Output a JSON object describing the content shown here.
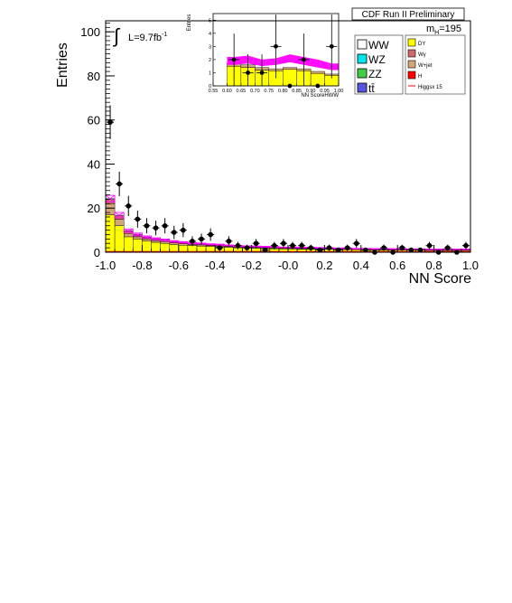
{
  "header": {
    "title": "CDF Run II Preliminary"
  },
  "chart_data": {
    "type": "histogram",
    "xlabel": "NN Score",
    "ylabel": "Entries",
    "xlim": [
      -1.0,
      1.0
    ],
    "ylim": [
      0,
      105
    ],
    "x_ticks": [
      "-1.0",
      "-0.8",
      "-0.6",
      "-0.4",
      "-0.2",
      "-0.0",
      "0.2",
      "0.4",
      "0.6",
      "0.8",
      "1.0"
    ],
    "y_ticks": [
      "0",
      "20",
      "40",
      "60",
      "80",
      "100"
    ],
    "x_tick_values": [
      -1.0,
      -0.8,
      -0.6,
      -0.4,
      -0.2,
      0.0,
      0.2,
      0.4,
      0.6,
      0.8,
      1.0
    ],
    "y_tick_values": [
      0,
      20,
      40,
      60,
      80,
      100
    ],
    "luminosity": {
      "prefix": "L=9.7fb",
      "exponent": "-1"
    },
    "mass": {
      "prefix": "m",
      "subscript": "H",
      "suffix": "=195"
    },
    "bin_edges": [
      -1.0,
      -0.95,
      -0.9,
      -0.85,
      -0.8,
      -0.75,
      -0.7,
      -0.65,
      -0.6,
      -0.55,
      -0.5,
      -0.45,
      -0.4,
      -0.35,
      -0.3,
      -0.25,
      -0.2,
      -0.15,
      -0.1,
      -0.05,
      0.0,
      0.05,
      0.1,
      0.15,
      0.2,
      0.25,
      0.3,
      0.35,
      0.4,
      0.45,
      0.5,
      0.55,
      0.6,
      0.65,
      0.7,
      0.75,
      0.8,
      0.85,
      0.9,
      0.95,
      1.0
    ],
    "stack": [
      {
        "name": "DY",
        "color": "#ffff00",
        "values": [
          17,
          12,
          7,
          6,
          5,
          4.5,
          4,
          3.5,
          3.2,
          3,
          2.8,
          2.6,
          2.4,
          2.2,
          2,
          1.9,
          1.8,
          1.7,
          1.6,
          1.5,
          1.5,
          1.4,
          1.4,
          1.3,
          1.3,
          1.2,
          1.2,
          1.1,
          1.1,
          1,
          1,
          1,
          0.9,
          0.9,
          0.9,
          0.8,
          0.8,
          0.8,
          0.8,
          0.8
        ]
      },
      {
        "name": "W+jet",
        "color": "#d2a679",
        "values": [
          5,
          3,
          1.5,
          1,
          1,
          0.8,
          0.8,
          0.7,
          0.6,
          0.5,
          0.5,
          0.4,
          0.4,
          0.4,
          0.3,
          0.3,
          0.3,
          0.3,
          0.3,
          0.2,
          0.2,
          0.2,
          0.2,
          0.2,
          0.2,
          0.2,
          0.1,
          0.1,
          0.1,
          0.1,
          0.1,
          0.1,
          0.1,
          0.1,
          0.1,
          0.1,
          0.1,
          0.1,
          0.1,
          0.1
        ]
      },
      {
        "name": "Wγ",
        "color": "#d06a6a",
        "values": [
          2,
          1.5,
          1,
          0.8,
          0.6,
          0.5,
          0.5,
          0.4,
          0.4,
          0.3,
          0.3,
          0.3,
          0.3,
          0.2,
          0.2,
          0.2,
          0.2,
          0.2,
          0.2,
          0.2,
          0.2,
          0.2,
          0.2,
          0.2,
          0.1,
          0.1,
          0.1,
          0.1,
          0.1,
          0.1,
          0.1,
          0.1,
          0.1,
          0.1,
          0.1,
          0.1,
          0.1,
          0.1,
          0.1,
          0.1
        ]
      },
      {
        "name": "WW",
        "color": "#ffffff",
        "values": [
          0.3,
          0.3,
          0.3,
          0.3,
          0.3,
          0.3,
          0.3,
          0.3,
          0.3,
          0.3,
          0.3,
          0.3,
          0.3,
          0.3,
          0.3,
          0.3,
          0.3,
          0.3,
          0.3,
          0.3,
          0.3,
          0.3,
          0.3,
          0.3,
          0.3,
          0.3,
          0.3,
          0.3,
          0.3,
          0.3,
          0.3,
          0.3,
          0.3,
          0.3,
          0.3,
          0.3,
          0.3,
          0.3,
          0.3,
          0.3
        ]
      }
    ],
    "uncertainty_band": {
      "color": "#ff00ff",
      "center": [
        24.3,
        16.8,
        9.8,
        8.1,
        6.9,
        6.1,
        5.6,
        4.9,
        4.5,
        4.1,
        3.9,
        3.6,
        3.4,
        3.1,
        2.8,
        2.7,
        2.6,
        2.5,
        2.4,
        2.2,
        2.2,
        2.1,
        2.1,
        2.0,
        1.9,
        1.8,
        1.7,
        1.6,
        1.6,
        1.5,
        1.5,
        1.5,
        1.4,
        1.4,
        1.4,
        1.3,
        1.3,
        1.3,
        1.3,
        1.3
      ],
      "width": [
        3,
        2.5,
        1.5,
        1.2,
        1,
        0.9,
        0.8,
        0.7,
        0.6,
        0.6,
        0.5,
        0.5,
        0.5,
        0.4,
        0.4,
        0.4,
        0.4,
        0.4,
        0.4,
        0.3,
        0.3,
        0.3,
        0.3,
        0.3,
        0.3,
        0.3,
        0.3,
        0.3,
        0.3,
        0.3,
        0.3,
        0.3,
        0.3,
        0.3,
        0.3,
        0.3,
        0.3,
        0.3,
        0.3,
        0.3
      ]
    },
    "signal_line": {
      "name": "Higgsx 15",
      "color": "#ff0000",
      "values": [
        0.3,
        0.3,
        0.3,
        0.3,
        0.3,
        0.3,
        0.3,
        0.3,
        0.3,
        0.3,
        0.3,
        0.3,
        0.3,
        0.3,
        0.3,
        0.3,
        0.3,
        0.3,
        0.3,
        0.3,
        0.3,
        0.3,
        0.3,
        0.3,
        0.3,
        0.3,
        0.3,
        0.3,
        0.3,
        0.3,
        0.3,
        0.3,
        0.3,
        0.3,
        0.3,
        0.3,
        0.3,
        0.3,
        0.3,
        0.3
      ]
    },
    "data_points": {
      "x": [
        -0.975,
        -0.925,
        -0.875,
        -0.825,
        -0.775,
        -0.725,
        -0.675,
        -0.625,
        -0.575,
        -0.525,
        -0.475,
        -0.425,
        -0.375,
        -0.325,
        -0.275,
        -0.225,
        -0.175,
        -0.125,
        -0.075,
        -0.025,
        0.025,
        0.075,
        0.125,
        0.175,
        0.225,
        0.275,
        0.325,
        0.375,
        0.425,
        0.475,
        0.525,
        0.575,
        0.625,
        0.675,
        0.725,
        0.775,
        0.825,
        0.875,
        0.925,
        0.975
      ],
      "y": [
        59,
        31,
        21,
        15,
        12,
        11,
        12,
        9,
        10,
        5,
        6,
        8,
        2,
        5,
        3,
        2,
        4,
        1,
        3,
        4,
        3,
        3,
        2,
        1,
        2,
        1,
        2,
        4,
        1,
        0,
        2,
        0,
        2,
        1,
        1,
        3,
        0,
        2,
        0,
        3
      ]
    },
    "inset": {
      "xlabel": "NN ScoreHWW",
      "ylabel": "Entries",
      "xlim": [
        0.55,
        1.0
      ],
      "ylim": [
        0,
        5.5
      ],
      "x_ticks": [
        "0.55",
        "0.60",
        "0.65",
        "0.70",
        "0.75",
        "0.80",
        "0.85",
        "0.90",
        "0.95",
        "1.00"
      ],
      "y_ticks": [
        "0",
        "1",
        "2",
        "3",
        "4",
        "5"
      ],
      "x_tick_values": [
        0.55,
        0.6,
        0.65,
        0.7,
        0.75,
        0.8,
        0.85,
        0.9,
        0.95,
        1.0
      ],
      "y_tick_values": [
        0,
        1,
        2,
        3,
        4,
        5
      ],
      "bin_edges": [
        0.6,
        0.65,
        0.7,
        0.75,
        0.8,
        0.85,
        0.9,
        0.95,
        1.0
      ],
      "stack_total": [
        1.7,
        1.6,
        1.4,
        1.3,
        1.4,
        1.3,
        1.1,
        0.9
      ],
      "stack_base": [
        1.5,
        1.4,
        1.2,
        1.15,
        1.25,
        1.15,
        0.95,
        0.8
      ],
      "band_low": [
        1.6,
        1.7,
        1.5,
        1.6,
        1.8,
        1.6,
        1.4,
        1.2
      ],
      "band_high": [
        2.2,
        2.3,
        2.0,
        2.1,
        2.4,
        2.2,
        2.0,
        1.7
      ],
      "data_x": [
        0.625,
        0.675,
        0.725,
        0.775,
        0.825,
        0.875,
        0.925,
        0.975
      ],
      "data_y": [
        2,
        1,
        1,
        3,
        0,
        2,
        0,
        3
      ]
    }
  },
  "legend": {
    "left": [
      {
        "label": "WW",
        "color": "#ffffff"
      },
      {
        "label": "WZ",
        "color": "#00e5ee"
      },
      {
        "label": "ZZ",
        "color": "#44cc44"
      },
      {
        "label": "tt̄",
        "color": "#5555dd"
      }
    ],
    "right": [
      {
        "label": "DY",
        "color": "#ffff00",
        "kind": "box"
      },
      {
        "label": "Wγ",
        "color": "#d06a6a",
        "kind": "box"
      },
      {
        "label": "W+jet",
        "color": "#d2a679",
        "kind": "box"
      },
      {
        "label": "H",
        "color": "#ff0000",
        "kind": "box"
      },
      {
        "label": "Higgsx 15",
        "color": "#ff0000",
        "kind": "line"
      }
    ]
  }
}
